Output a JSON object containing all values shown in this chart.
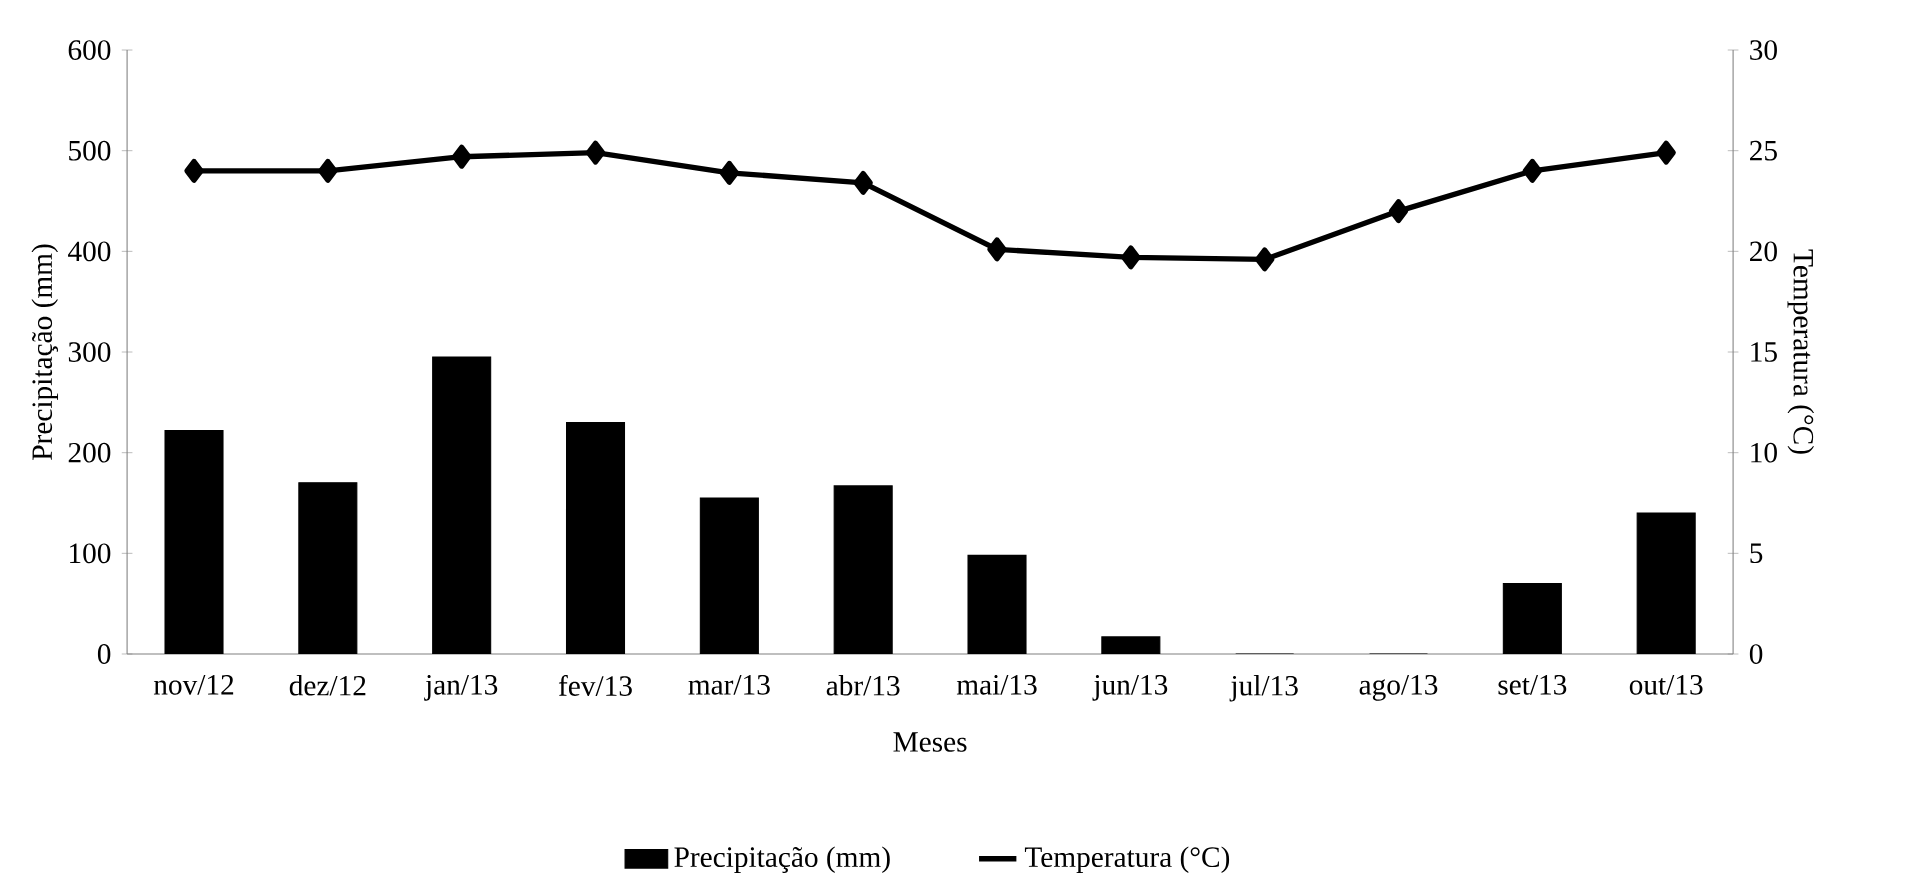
{
  "chart_data": {
    "type": "bar",
    "categories": [
      "nov/12",
      "dez/12",
      "jan/13",
      "fev/13",
      "mar/13",
      "abr/13",
      "mai/13",
      "jun/13",
      "jul/13",
      "ago/13",
      "set/13",
      "out/13"
    ],
    "series": [
      {
        "name": "Precipitação (mm)",
        "color": "#000000",
        "values": [
          222,
          170,
          295,
          230,
          155,
          167,
          98,
          17,
          0,
          0,
          70,
          140
        ]
      },
      {
        "name": "Temperatura (°C)",
        "type": "line",
        "axis": "y2",
        "color": "#000000",
        "marker": "diamond",
        "line_style": "solid",
        "values": [
          24,
          24,
          24.7,
          24.9,
          23.9,
          23.4,
          20.1,
          19.7,
          19.6,
          22,
          24,
          24.9
        ]
      }
    ],
    "xlabel": "Meses",
    "ylabel": "Precipitação (mm)",
    "y2label": "Temperatura (°C)",
    "ylim": [
      0,
      600
    ],
    "yticks": [
      0,
      100,
      200,
      300,
      400,
      500,
      600
    ],
    "y2lim": [
      0,
      30
    ],
    "y2ticks": [
      0,
      5,
      10,
      15,
      20,
      25,
      30
    ],
    "legend": "bottom"
  }
}
